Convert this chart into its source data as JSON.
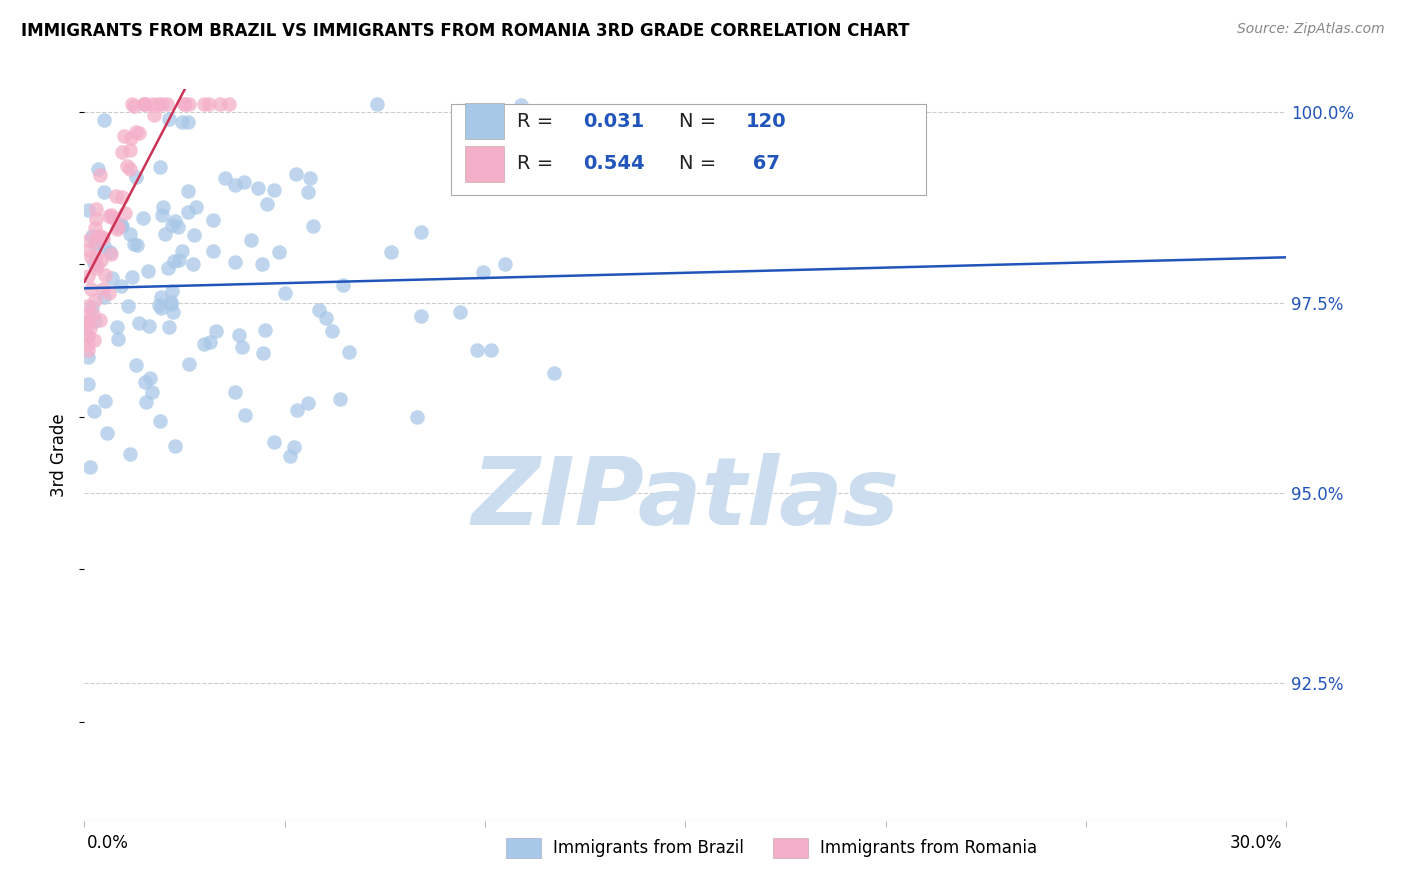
{
  "title": "IMMIGRANTS FROM BRAZIL VS IMMIGRANTS FROM ROMANIA 3RD GRADE CORRELATION CHART",
  "source": "Source: ZipAtlas.com",
  "ylabel": "3rd Grade",
  "xlim": [
    0.0,
    0.3
  ],
  "ylim": [
    0.907,
    1.003
  ],
  "ytick_values": [
    1.0,
    0.975,
    0.95,
    0.925
  ],
  "ytick_labels": [
    "100.0%",
    "97.5%",
    "95.0%",
    "92.5%"
  ],
  "xtick_values": [
    0.0,
    0.05,
    0.1,
    0.15,
    0.2,
    0.25,
    0.3
  ],
  "brazil_color": "#a8c8e8",
  "romania_color": "#f4afc8",
  "brazil_line_color": "#2255bb",
  "romania_line_color": "#cc3355",
  "brazil_R": 0.031,
  "brazil_N": 120,
  "romania_R": 0.544,
  "romania_N": 67,
  "watermark_text": "ZIPatlas",
  "watermark_color": "#ccddf0",
  "legend_R_color": "#2255bb",
  "legend_N_color": "#2255bb",
  "right_label_color": "#2255bb",
  "title_fontsize": 12,
  "source_fontsize": 10,
  "tick_label_fontsize": 12,
  "legend_fontsize": 14
}
